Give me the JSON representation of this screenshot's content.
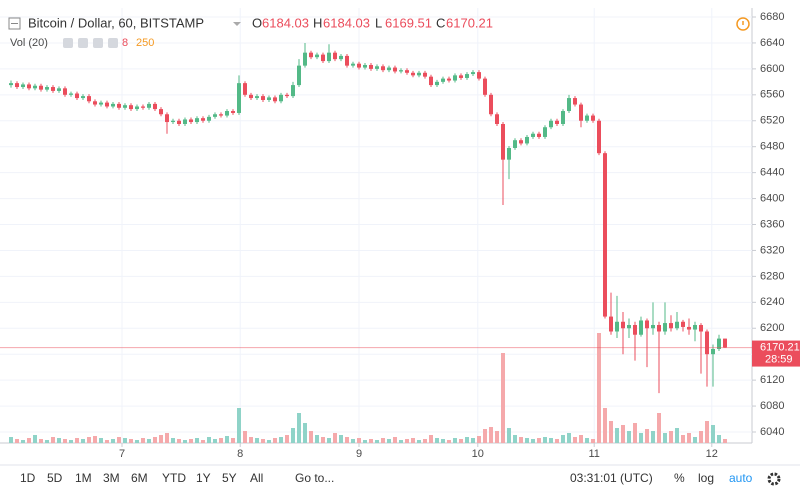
{
  "chart_data": {
    "type": "candlestick",
    "title": "Bitcoin / Dollar, 60, BITSTAMP",
    "ohlc_labels": [
      "O",
      "H",
      "L",
      "C"
    ],
    "volume_legend": {
      "label": "Vol (20)",
      "value": "8",
      "ma": "250"
    },
    "countdown": "28:59",
    "up_color": "#53b987",
    "down_color": "#eb4d5c",
    "up_volume_color": "#8fd3c8",
    "down_volume_color": "#f5a9ab",
    "ylim": [
      6020,
      6690
    ],
    "yticks": [
      6040,
      6080,
      6120,
      6160,
      6200,
      6240,
      6280,
      6320,
      6360,
      6400,
      6440,
      6480,
      6520,
      6560,
      6600,
      6640,
      6680
    ],
    "xticks": [
      {
        "value": 18.5,
        "label": "7"
      },
      {
        "value": 38.2,
        "label": "8"
      },
      {
        "value": 58,
        "label": "9"
      },
      {
        "value": 77.8,
        "label": "10"
      },
      {
        "value": 97.2,
        "label": "11"
      },
      {
        "value": 116.8,
        "label": "12"
      }
    ],
    "grid": true,
    "ohlc": [
      [
        6575,
        6582,
        6571,
        6578
      ],
      [
        6578,
        6581,
        6569,
        6572
      ],
      [
        6572,
        6579,
        6569,
        6576
      ],
      [
        6576,
        6579,
        6567,
        6570
      ],
      [
        6570,
        6577,
        6567,
        6574
      ],
      [
        6574,
        6577,
        6565,
        6568
      ],
      [
        6568,
        6575,
        6565,
        6572
      ],
      [
        6572,
        6575,
        6563,
        6566
      ],
      [
        6566,
        6573,
        6563,
        6570
      ],
      [
        6570,
        6573,
        6557,
        6560
      ],
      [
        6560,
        6565,
        6557,
        6562
      ],
      [
        6562,
        6565,
        6552,
        6555
      ],
      [
        6555,
        6561,
        6552,
        6558
      ],
      [
        6558,
        6561,
        6547,
        6550
      ],
      [
        6550,
        6553,
        6542,
        6545
      ],
      [
        6545,
        6551,
        6542,
        6548
      ],
      [
        6548,
        6551,
        6539,
        6542
      ],
      [
        6542,
        6549,
        6539,
        6546
      ],
      [
        6546,
        6549,
        6537,
        6540
      ],
      [
        6540,
        6547,
        6537,
        6544
      ],
      [
        6544,
        6547,
        6535,
        6538
      ],
      [
        6538,
        6545,
        6535,
        6542
      ],
      [
        6542,
        6545,
        6537,
        6540
      ],
      [
        6540,
        6549,
        6537,
        6546
      ],
      [
        6546,
        6549,
        6535,
        6538
      ],
      [
        6538,
        6541,
        6527,
        6530
      ],
      [
        6530,
        6533,
        6500,
        6518
      ],
      [
        6518,
        6523,
        6515,
        6520
      ],
      [
        6520,
        6523,
        6512,
        6515
      ],
      [
        6515,
        6525,
        6512,
        6522
      ],
      [
        6522,
        6525,
        6515,
        6518
      ],
      [
        6518,
        6527,
        6515,
        6524
      ],
      [
        6524,
        6527,
        6517,
        6520
      ],
      [
        6520,
        6529,
        6517,
        6526
      ],
      [
        6526,
        6533,
        6523,
        6530
      ],
      [
        6530,
        6533,
        6525,
        6528
      ],
      [
        6528,
        6538,
        6525,
        6535
      ],
      [
        6535,
        6538,
        6529,
        6532
      ],
      [
        6532,
        6590,
        6529,
        6578
      ],
      [
        6578,
        6581,
        6557,
        6560
      ],
      [
        6560,
        6563,
        6552,
        6555
      ],
      [
        6555,
        6561,
        6552,
        6558
      ],
      [
        6558,
        6561,
        6549,
        6552
      ],
      [
        6552,
        6559,
        6549,
        6556
      ],
      [
        6556,
        6559,
        6547,
        6550
      ],
      [
        6550,
        6563,
        6547,
        6560
      ],
      [
        6560,
        6563,
        6555,
        6558
      ],
      [
        6558,
        6580,
        6555,
        6575
      ],
      [
        6575,
        6615,
        6572,
        6605
      ],
      [
        6605,
        6640,
        6602,
        6625
      ],
      [
        6625,
        6628,
        6615,
        6618
      ],
      [
        6618,
        6625,
        6615,
        6622
      ],
      [
        6622,
        6625,
        6609,
        6612
      ],
      [
        6612,
        6638,
        6609,
        6625
      ],
      [
        6625,
        6628,
        6612,
        6615
      ],
      [
        6615,
        6623,
        6612,
        6620
      ],
      [
        6620,
        6623,
        6602,
        6605
      ],
      [
        6605,
        6611,
        6602,
        6608
      ],
      [
        6608,
        6611,
        6599,
        6602
      ],
      [
        6602,
        6609,
        6599,
        6606
      ],
      [
        6606,
        6609,
        6597,
        6600
      ],
      [
        6600,
        6607,
        6597,
        6604
      ],
      [
        6604,
        6607,
        6595,
        6598
      ],
      [
        6598,
        6605,
        6595,
        6602
      ],
      [
        6602,
        6605,
        6593,
        6596
      ],
      [
        6596,
        6601,
        6593,
        6598
      ],
      [
        6598,
        6601,
        6591,
        6594
      ],
      [
        6594,
        6597,
        6587,
        6590
      ],
      [
        6590,
        6597,
        6587,
        6594
      ],
      [
        6594,
        6597,
        6585,
        6588
      ],
      [
        6588,
        6591,
        6572,
        6575
      ],
      [
        6575,
        6583,
        6572,
        6580
      ],
      [
        6580,
        6588,
        6577,
        6585
      ],
      [
        6585,
        6588,
        6579,
        6582
      ],
      [
        6582,
        6593,
        6579,
        6590
      ],
      [
        6590,
        6593,
        6583,
        6586
      ],
      [
        6586,
        6595,
        6583,
        6592
      ],
      [
        6592,
        6598,
        6589,
        6595
      ],
      [
        6595,
        6598,
        6582,
        6585
      ],
      [
        6585,
        6588,
        6557,
        6560
      ],
      [
        6560,
        6563,
        6527,
        6530
      ],
      [
        6530,
        6533,
        6512,
        6515
      ],
      [
        6515,
        6518,
        6390,
        6460
      ],
      [
        6460,
        6481,
        6430,
        6478
      ],
      [
        6478,
        6493,
        6475,
        6490
      ],
      [
        6490,
        6493,
        6482,
        6485
      ],
      [
        6485,
        6498,
        6482,
        6495
      ],
      [
        6495,
        6503,
        6492,
        6500
      ],
      [
        6500,
        6503,
        6492,
        6495
      ],
      [
        6495,
        6513,
        6492,
        6510
      ],
      [
        6510,
        6523,
        6507,
        6520
      ],
      [
        6520,
        6523,
        6512,
        6515
      ],
      [
        6515,
        6538,
        6512,
        6535
      ],
      [
        6535,
        6560,
        6532,
        6555
      ],
      [
        6555,
        6558,
        6542,
        6545
      ],
      [
        6545,
        6548,
        6510,
        6520
      ],
      [
        6520,
        6531,
        6517,
        6528
      ],
      [
        6528,
        6531,
        6517,
        6520
      ],
      [
        6520,
        6523,
        6467,
        6470
      ],
      [
        6470,
        6473,
        6215,
        6218
      ],
      [
        6218,
        6255,
        6190,
        6195
      ],
      [
        6195,
        6250,
        6185,
        6210
      ],
      [
        6210,
        6225,
        6160,
        6200
      ],
      [
        6200,
        6215,
        6185,
        6205
      ],
      [
        6205,
        6210,
        6150,
        6190
      ],
      [
        6190,
        6218,
        6187,
        6212
      ],
      [
        6212,
        6215,
        6140,
        6200
      ],
      [
        6200,
        6240,
        6190,
        6205
      ],
      [
        6205,
        6210,
        6100,
        6195
      ],
      [
        6195,
        6240,
        6190,
        6208
      ],
      [
        6208,
        6220,
        6195,
        6200
      ],
      [
        6200,
        6225,
        6197,
        6210
      ],
      [
        6210,
        6213,
        6195,
        6202
      ],
      [
        6202,
        6215,
        6190,
        6198
      ],
      [
        6198,
        6210,
        6180,
        6205
      ],
      [
        6205,
        6208,
        6130,
        6195
      ],
      [
        6195,
        6198,
        6110,
        6160
      ],
      [
        6160,
        6175,
        6110,
        6168
      ],
      [
        6168,
        6190,
        6165,
        6184.03
      ],
      [
        6184.03,
        6184.03,
        6169.51,
        6170.21
      ]
    ],
    "volume": [
      6,
      4,
      3,
      5,
      8,
      4,
      3,
      6,
      5,
      4,
      3,
      5,
      4,
      6,
      7,
      5,
      3,
      4,
      6,
      5,
      4,
      3,
      5,
      4,
      6,
      8,
      10,
      5,
      4,
      3,
      4,
      5,
      3,
      6,
      4,
      5,
      7,
      5,
      35,
      12,
      6,
      5,
      4,
      3,
      5,
      6,
      8,
      15,
      30,
      20,
      12,
      8,
      6,
      5,
      10,
      8,
      6,
      4,
      5,
      3,
      4,
      3,
      5,
      4,
      6,
      3,
      4,
      5,
      3,
      4,
      8,
      5,
      4,
      3,
      5,
      4,
      6,
      5,
      7,
      14,
      16,
      12,
      90,
      15,
      8,
      6,
      5,
      4,
      5,
      6,
      5,
      4,
      8,
      10,
      6,
      8,
      5,
      4,
      110,
      35,
      22,
      15,
      18,
      12,
      20,
      10,
      14,
      12,
      30,
      10,
      12,
      15,
      8,
      10,
      6,
      12,
      22,
      18,
      8,
      4
    ]
  },
  "toolbar": {
    "ranges": [
      "1D",
      "5D",
      "1M",
      "3M",
      "6M",
      "YTD",
      "1Y",
      "5Y",
      "All"
    ],
    "goto": "Go to...",
    "clock": "03:31:01 (UTC)",
    "percent": "%",
    "log": "log",
    "auto": "auto"
  }
}
